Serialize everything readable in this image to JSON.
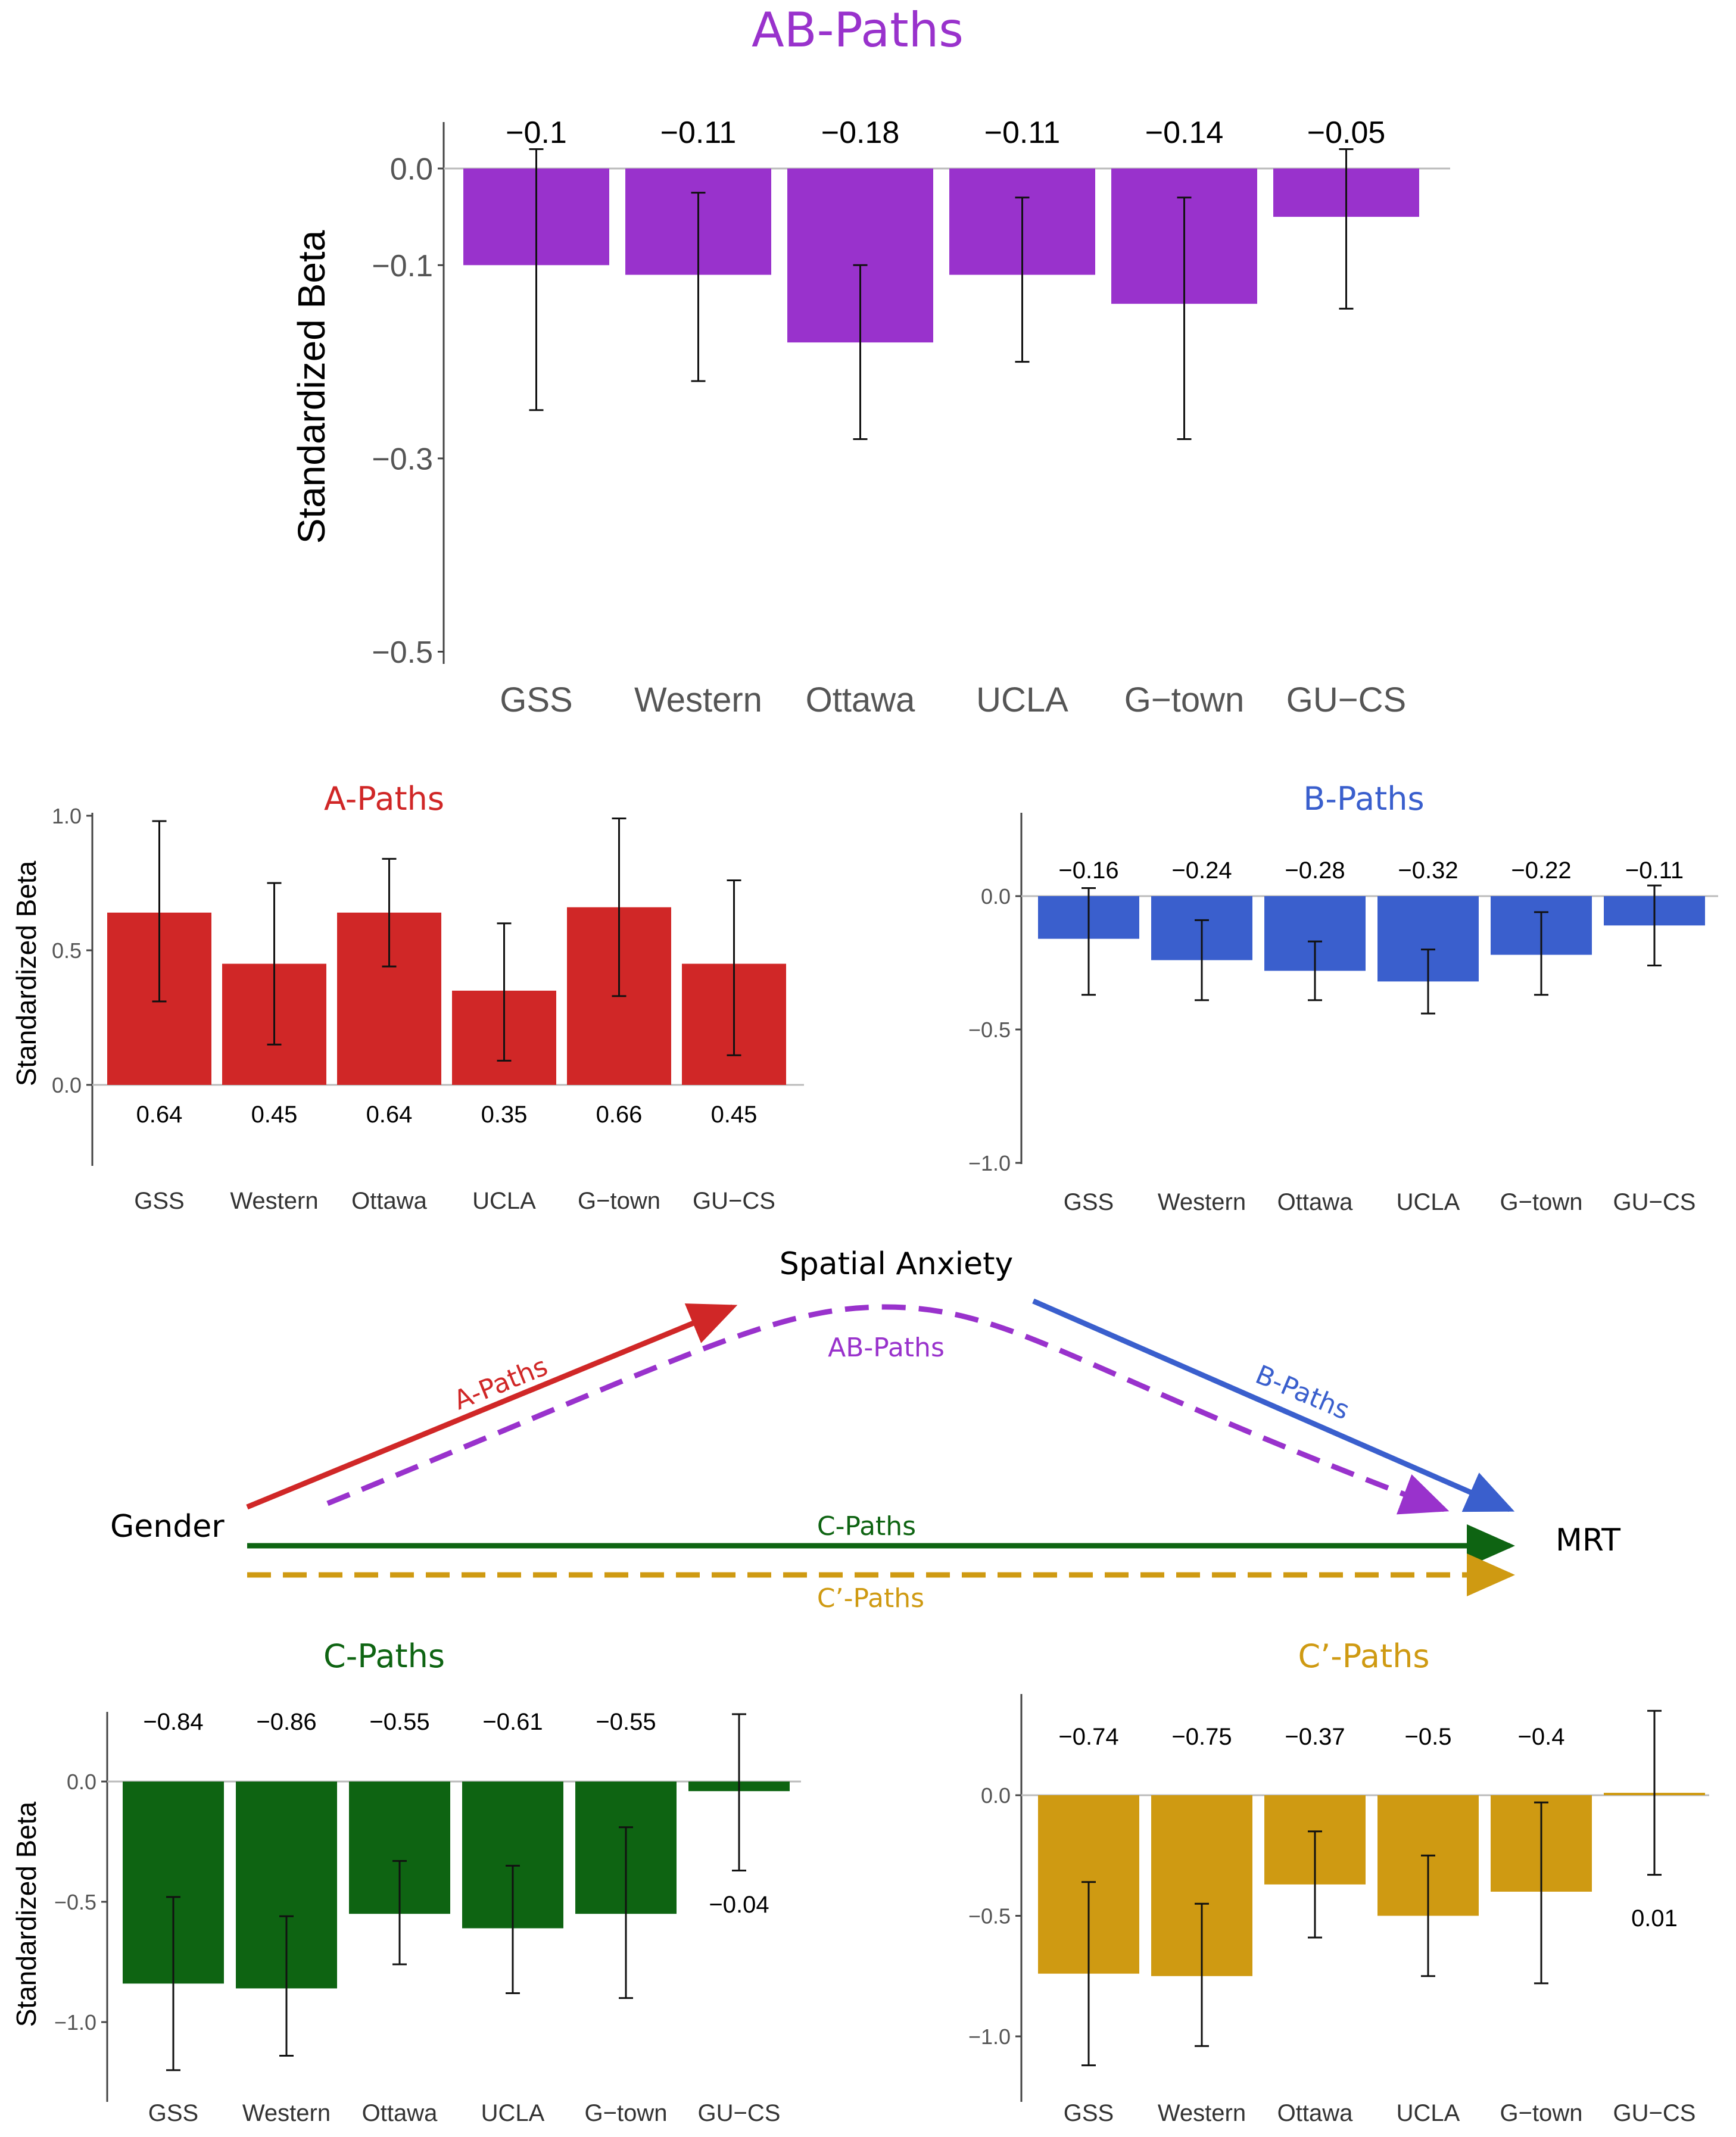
{
  "chart_data": [
    {
      "id": "ab",
      "type": "bar",
      "title": "AB-Paths",
      "ylabel": "Standardized Beta",
      "xlabel": "",
      "categories": [
        "GSS",
        "Western",
        "Ottawa",
        "UCLA",
        "G−town",
        "GU−CS"
      ],
      "values": [
        -0.1,
        -0.11,
        -0.18,
        -0.11,
        -0.14,
        -0.05
      ],
      "value_labels": [
        "−0.1",
        "−0.11",
        "−0.18",
        "−0.11",
        "−0.14",
        "−0.05"
      ],
      "ci_low": [
        -0.25,
        -0.22,
        -0.28,
        -0.2,
        -0.28,
        -0.145
      ],
      "ci_high": [
        0.02,
        -0.025,
        -0.1,
        -0.03,
        -0.03,
        0.02
      ],
      "ylim": [
        -0.5,
        0.05
      ],
      "yticks": [
        0.0,
        -0.1,
        -0.3,
        -0.5
      ],
      "ytick_labels": [
        "0.0",
        "−0.1",
        "−0.3",
        "−0.5"
      ],
      "color": "#9932cc"
    },
    {
      "id": "a",
      "type": "bar",
      "title": "A-Paths",
      "ylabel": "Standardized Beta",
      "xlabel": "",
      "categories": [
        "GSS",
        "Western",
        "Ottawa",
        "UCLA",
        "G−town",
        "GU−CS"
      ],
      "values": [
        0.64,
        0.45,
        0.64,
        0.35,
        0.66,
        0.45
      ],
      "value_labels": [
        "0.64",
        "0.45",
        "0.64",
        "0.35",
        "0.66",
        "0.45"
      ],
      "ci_low": [
        0.31,
        0.15,
        0.44,
        0.09,
        0.33,
        0.11
      ],
      "ci_high": [
        0.98,
        0.75,
        0.84,
        0.6,
        0.99,
        0.76
      ],
      "ylim": [
        -0.3,
        1.0
      ],
      "yticks": [
        0.0,
        0.5,
        1.0
      ],
      "ytick_labels": [
        "0.0",
        "0.5",
        "1.0"
      ],
      "color": "#d02727"
    },
    {
      "id": "b",
      "type": "bar",
      "title": "B-Paths",
      "ylabel": "",
      "xlabel": "",
      "categories": [
        "GSS",
        "Western",
        "Ottawa",
        "UCLA",
        "G−town",
        "GU−CS"
      ],
      "values": [
        -0.16,
        -0.24,
        -0.28,
        -0.32,
        -0.22,
        -0.11
      ],
      "value_labels": [
        "−0.16",
        "−0.24",
        "−0.28",
        "−0.32",
        "−0.22",
        "−0.11"
      ],
      "ci_low": [
        -0.37,
        -0.39,
        -0.39,
        -0.44,
        -0.37,
        -0.26
      ],
      "ci_high": [
        0.03,
        -0.09,
        -0.17,
        -0.2,
        -0.06,
        0.04
      ],
      "ylim": [
        -1.0,
        0.3
      ],
      "yticks": [
        0.0,
        -0.5,
        -1.0
      ],
      "ytick_labels": [
        "0.0",
        "−0.5",
        "−1.0"
      ],
      "color": "#3a5fcd"
    },
    {
      "id": "c",
      "type": "bar",
      "title": "C-Paths",
      "ylabel": "Standardized Beta",
      "xlabel": "",
      "categories": [
        "GSS",
        "Western",
        "Ottawa",
        "UCLA",
        "G−town",
        "GU−CS"
      ],
      "values": [
        -0.84,
        -0.86,
        -0.55,
        -0.61,
        -0.55,
        -0.04
      ],
      "value_labels": [
        "−0.84",
        "−0.86",
        "−0.55",
        "−0.61",
        "−0.55",
        "−0.04"
      ],
      "ci_low": [
        -1.2,
        -1.14,
        -0.76,
        -0.88,
        -0.9,
        -0.37
      ],
      "ci_high": [
        -0.48,
        -0.56,
        -0.33,
        -0.35,
        -0.19,
        0.28
      ],
      "ylim": [
        -1.2,
        0.3
      ],
      "yticks": [
        0.0,
        -0.5,
        -1.0
      ],
      "ytick_labels": [
        "0.0",
        "−0.5",
        "−1.0"
      ],
      "color": "#0e6412"
    },
    {
      "id": "cp",
      "type": "bar",
      "title": "C’-Paths",
      "ylabel": "",
      "xlabel": "",
      "categories": [
        "GSS",
        "Western",
        "Ottawa",
        "UCLA",
        "G−town",
        "GU−CS"
      ],
      "values": [
        -0.74,
        -0.75,
        -0.37,
        -0.5,
        -0.4,
        0.01
      ],
      "value_labels": [
        "−0.74",
        "−0.75",
        "−0.37",
        "−0.5",
        "−0.4",
        "0.01"
      ],
      "ci_low": [
        -1.12,
        -1.04,
        -0.59,
        -0.75,
        -0.78,
        -0.33
      ],
      "ci_high": [
        -0.36,
        -0.45,
        -0.15,
        -0.25,
        -0.03,
        0.35
      ],
      "ylim": [
        -1.2,
        0.35
      ],
      "yticks": [
        0.0,
        -0.5,
        -1.0
      ],
      "ytick_labels": [
        "0.0",
        "−0.5",
        "−1.0"
      ],
      "color": "#cf9a12"
    }
  ],
  "diagram": {
    "nodes": {
      "gender": "Gender",
      "mediator": "Spatial Anxiety",
      "outcome": "MRT"
    },
    "paths": {
      "a": {
        "label": "A-Paths",
        "color": "#d02727"
      },
      "b": {
        "label": "B-Paths",
        "color": "#3a5fcd"
      },
      "ab": {
        "label": "AB-Paths",
        "color": "#9932cc"
      },
      "c": {
        "label": "C-Paths",
        "color": "#0e6412"
      },
      "cprime": {
        "label": "C’-Paths",
        "color": "#cf9a12"
      }
    }
  }
}
